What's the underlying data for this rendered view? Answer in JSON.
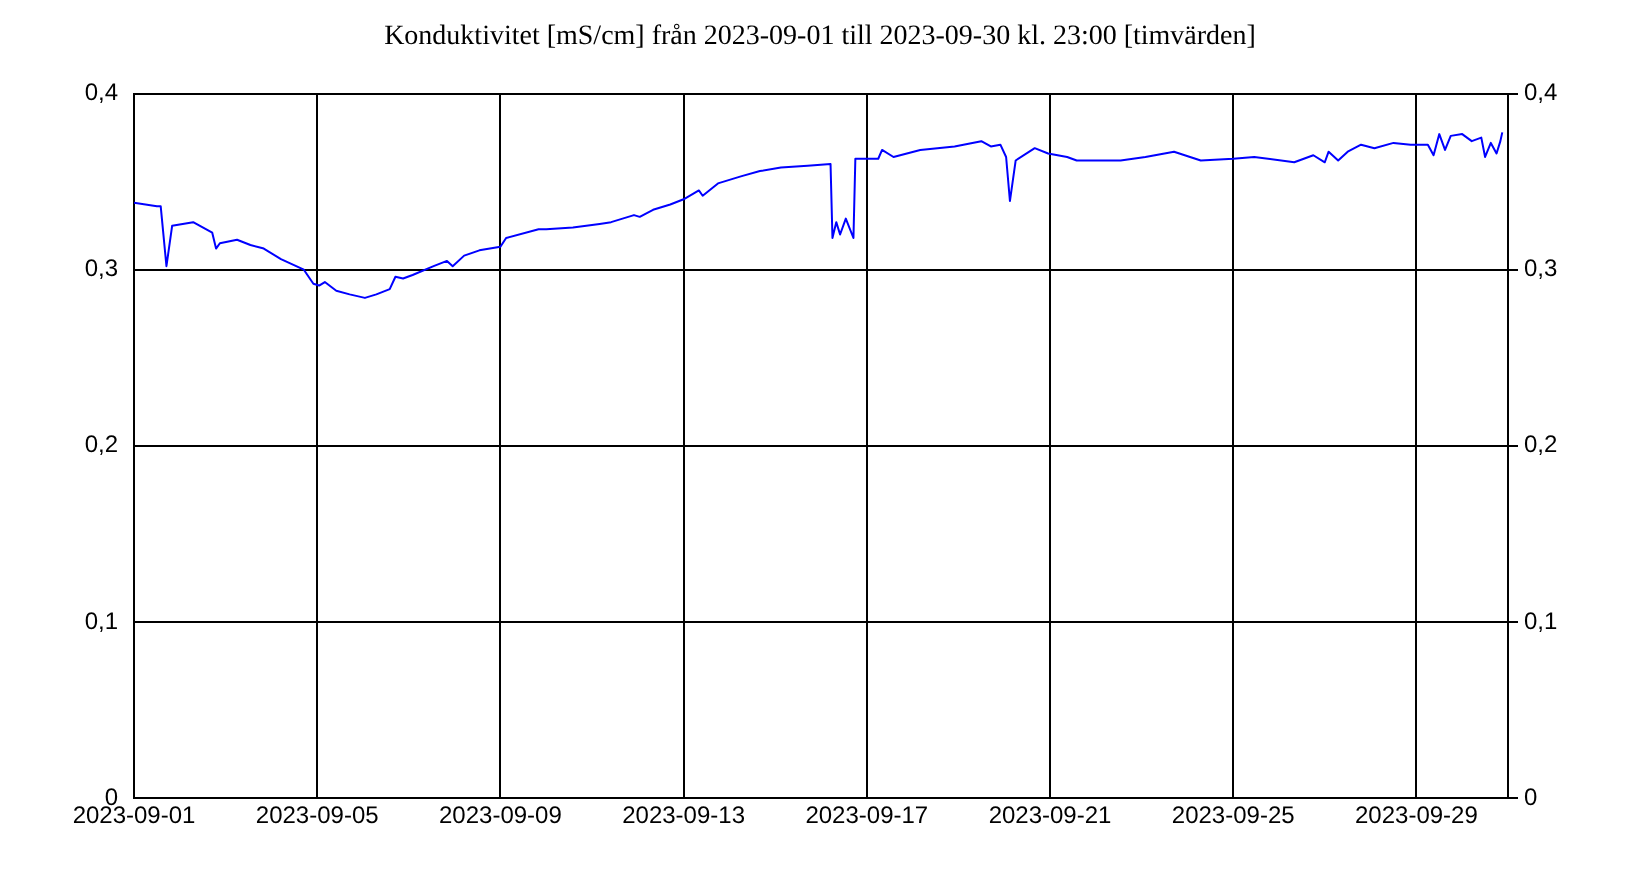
{
  "chart_data": {
    "type": "line",
    "title": "Konduktivitet [mS/cm] från 2023-09-01 till 2023-09-30 kl. 23:00 [timvärden]",
    "x": [
      "2023-09-01T00:00",
      "2023-09-01T12:00",
      "2023-09-01T14:00",
      "2023-09-01T17:00",
      "2023-09-01T20:00",
      "2023-09-02T07:00",
      "2023-09-02T17:00",
      "2023-09-02T19:00",
      "2023-09-02T21:00",
      "2023-09-03T06:00",
      "2023-09-03T13:00",
      "2023-09-03T20:00",
      "2023-09-04T05:00",
      "2023-09-04T17:00",
      "2023-09-04T22:00",
      "2023-09-05T01:00",
      "2023-09-05T04:00",
      "2023-09-05T10:00",
      "2023-09-05T17:00",
      "2023-09-06T01:00",
      "2023-09-06T07:00",
      "2023-09-06T14:00",
      "2023-09-06T17:00",
      "2023-09-06T21:00",
      "2023-09-07T02:00",
      "2023-09-07T13:00",
      "2023-09-07T20:00",
      "2023-09-07T23:00",
      "2023-09-08T05:00",
      "2023-09-08T13:00",
      "2023-09-09T00:00",
      "2023-09-09T03:00",
      "2023-09-09T20:00",
      "2023-09-10T00:00",
      "2023-09-10T14:00",
      "2023-09-11T04:00",
      "2023-09-11T10:00",
      "2023-09-11T22:00",
      "2023-09-12T01:00",
      "2023-09-12T08:00",
      "2023-09-12T17:00",
      "2023-09-13T00:00",
      "2023-09-13T08:00",
      "2023-09-13T10:00",
      "2023-09-13T18:00",
      "2023-09-14T06:00",
      "2023-09-14T16:00",
      "2023-09-15T03:00",
      "2023-09-15T17:00",
      "2023-09-16T05:00",
      "2023-09-16T06:00",
      "2023-09-16T08:00",
      "2023-09-16T10:00",
      "2023-09-16T13:00",
      "2023-09-16T17:00",
      "2023-09-16T18:00",
      "2023-09-17T06:00",
      "2023-09-17T08:00",
      "2023-09-17T14:00",
      "2023-09-18T04:00",
      "2023-09-18T22:00",
      "2023-09-19T12:00",
      "2023-09-19T17:00",
      "2023-09-19T22:00",
      "2023-09-20T01:00",
      "2023-09-20T03:00",
      "2023-09-20T06:00",
      "2023-09-20T16:00",
      "2023-09-20T23:00",
      "2023-09-21T09:00",
      "2023-09-21T14:00",
      "2023-09-22T13:00",
      "2023-09-23T02:00",
      "2023-09-23T17:00",
      "2023-09-24T07:00",
      "2023-09-25T00:00",
      "2023-09-25T11:00",
      "2023-09-26T08:00",
      "2023-09-26T18:00",
      "2023-09-27T00:00",
      "2023-09-27T02:00",
      "2023-09-27T07:00",
      "2023-09-27T12:00",
      "2023-09-27T19:00",
      "2023-09-28T02:00",
      "2023-09-28T12:00",
      "2023-09-28T21:00",
      "2023-09-29T06:00",
      "2023-09-29T09:00",
      "2023-09-29T12:00",
      "2023-09-29T15:00",
      "2023-09-29T18:00",
      "2023-09-30T00:00",
      "2023-09-30T05:00",
      "2023-09-30T10:00",
      "2023-09-30T12:00",
      "2023-09-30T15:00",
      "2023-09-30T18:00",
      "2023-09-30T20:00",
      "2023-09-30T21:00"
    ],
    "series": [
      {
        "color": "#0000ff",
        "values": [
          0.338,
          0.336,
          0.336,
          0.302,
          0.325,
          0.327,
          0.321,
          0.312,
          0.315,
          0.317,
          0.314,
          0.312,
          0.306,
          0.3,
          0.292,
          0.291,
          0.293,
          0.288,
          0.286,
          0.284,
          0.286,
          0.289,
          0.296,
          0.295,
          0.297,
          0.302,
          0.305,
          0.302,
          0.308,
          0.311,
          0.313,
          0.318,
          0.323,
          0.323,
          0.324,
          0.326,
          0.327,
          0.331,
          0.33,
          0.334,
          0.337,
          0.34,
          0.345,
          0.342,
          0.349,
          0.353,
          0.356,
          0.358,
          0.359,
          0.36,
          0.318,
          0.327,
          0.32,
          0.329,
          0.318,
          0.363,
          0.363,
          0.368,
          0.364,
          0.368,
          0.37,
          0.373,
          0.37,
          0.371,
          0.364,
          0.339,
          0.362,
          0.369,
          0.366,
          0.364,
          0.362,
          0.362,
          0.364,
          0.367,
          0.362,
          0.363,
          0.364,
          0.361,
          0.365,
          0.361,
          0.367,
          0.362,
          0.367,
          0.371,
          0.369,
          0.372,
          0.371,
          0.371,
          0.365,
          0.377,
          0.368,
          0.376,
          0.377,
          0.373,
          0.375,
          0.364,
          0.372,
          0.366,
          0.373,
          0.378
        ]
      }
    ],
    "xlim": [
      "2023-09-01",
      "2023-10-01"
    ],
    "xticks": [
      "2023-09-01",
      "2023-09-05",
      "2023-09-09",
      "2023-09-13",
      "2023-09-17",
      "2023-09-21",
      "2023-09-25",
      "2023-09-29"
    ],
    "ylim": [
      0,
      0.4
    ],
    "yticks": [
      {
        "value": 0,
        "label": "0"
      },
      {
        "value": 0.1,
        "label": "0,1"
      },
      {
        "value": 0.2,
        "label": "0,2"
      },
      {
        "value": 0.3,
        "label": "0,3"
      },
      {
        "value": 0.4,
        "label": "0,4"
      }
    ],
    "y2lim": [
      0,
      0.4
    ],
    "y2ticks": [
      {
        "value": 0,
        "label": "0"
      },
      {
        "value": 0.1,
        "label": "0,1"
      },
      {
        "value": 0.2,
        "label": "0,2"
      },
      {
        "value": 0.3,
        "label": "0,3"
      },
      {
        "value": 0.4,
        "label": "0,4"
      }
    ],
    "grid": true,
    "legend": false,
    "marker": "none",
    "line_style": "solid"
  }
}
